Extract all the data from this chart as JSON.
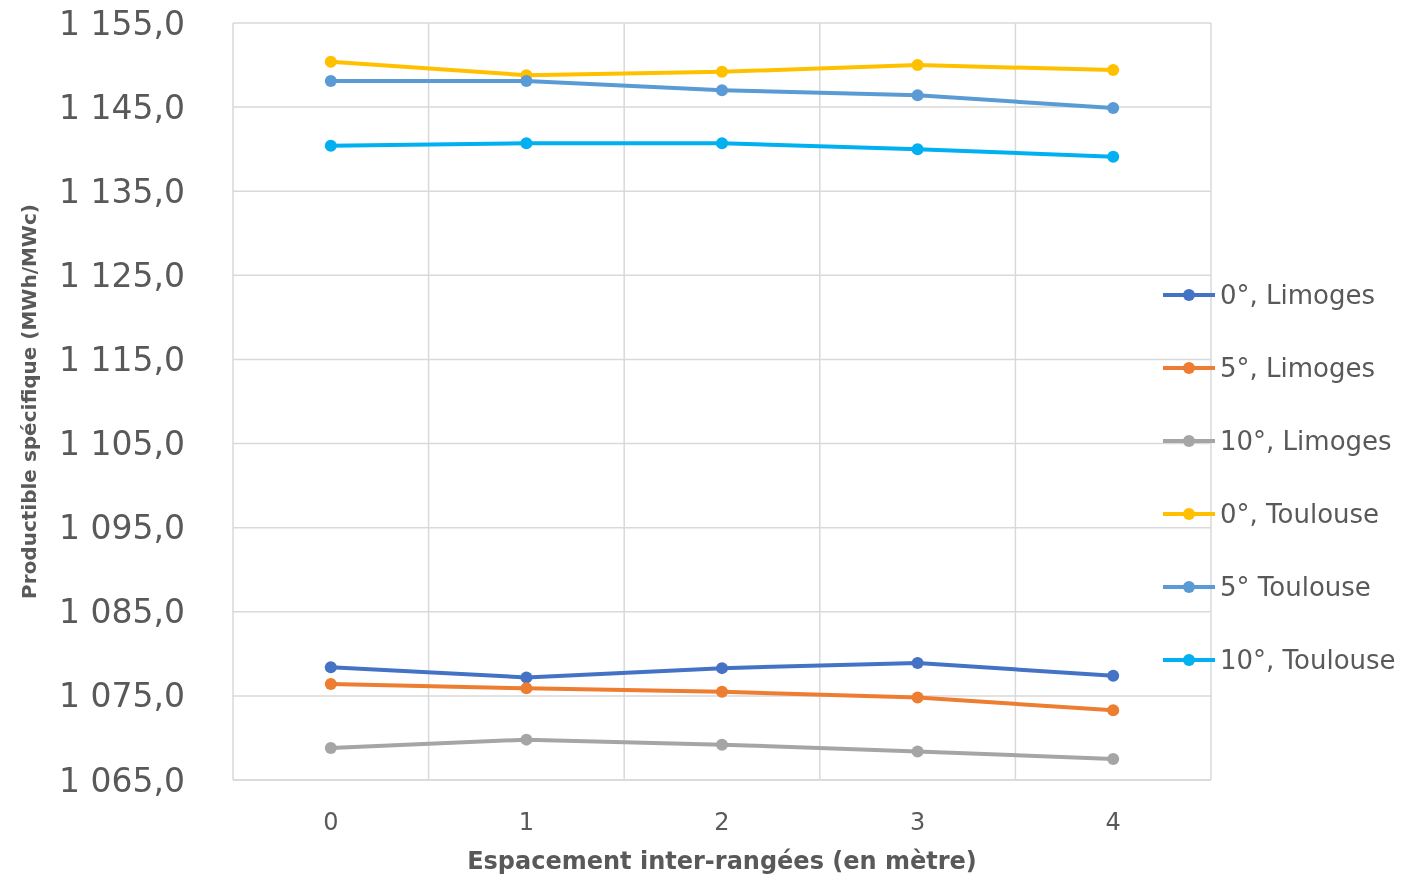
{
  "chart_data": {
    "type": "line",
    "xlabel": "Espacement inter-rangées (en mètre)",
    "ylabel": "Productible spécifique (MWh/MWc)",
    "categories": [
      "0",
      "1",
      "2",
      "3",
      "4"
    ],
    "ylim": [
      1065,
      1155
    ],
    "yticks": [
      {
        "value": 1065,
        "label": "1 065,0"
      },
      {
        "value": 1075,
        "label": "1 075,0"
      },
      {
        "value": 1085,
        "label": "1 085,0"
      },
      {
        "value": 1095,
        "label": "1 095,0"
      },
      {
        "value": 1105,
        "label": "1 105,0"
      },
      {
        "value": 1115,
        "label": "1 115,0"
      },
      {
        "value": 1125,
        "label": "1 125,0"
      },
      {
        "value": 1135,
        "label": "1 135,0"
      },
      {
        "value": 1145,
        "label": "1 145,0"
      },
      {
        "value": 1155,
        "label": "1 155,0"
      }
    ],
    "grid": true,
    "legend": "right",
    "marker": "circle",
    "line_style": "solid",
    "series": [
      {
        "name": "0°, Limoges",
        "color": "#4472c4",
        "values": [
          1078.4,
          1077.2,
          1078.3,
          1078.9,
          1077.4
        ]
      },
      {
        "name": "5°, Limoges",
        "color": "#ed7d31",
        "values": [
          1076.4,
          1075.9,
          1075.5,
          1074.8,
          1073.3
        ]
      },
      {
        "name": "10°, Limoges",
        "color": "#a5a5a5",
        "values": [
          1068.8,
          1069.8,
          1069.2,
          1068.4,
          1067.5
        ]
      },
      {
        "name": "0°, Toulouse",
        "color": "#ffc000",
        "values": [
          1150.4,
          1148.8,
          1149.2,
          1150.0,
          1149.4
        ]
      },
      {
        "name": "5° Toulouse",
        "color": "#5b9bd5",
        "values": [
          1148.1,
          1148.1,
          1147.0,
          1146.4,
          1144.9
        ]
      },
      {
        "name": "10°, Toulouse",
        "color": "#00b0f0",
        "values": [
          1140.4,
          1140.7,
          1140.7,
          1140.0,
          1139.1
        ]
      }
    ]
  }
}
